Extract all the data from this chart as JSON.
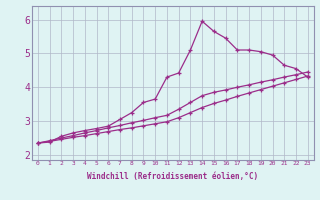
{
  "x": [
    0,
    1,
    2,
    3,
    4,
    5,
    6,
    7,
    8,
    9,
    10,
    11,
    12,
    13,
    14,
    15,
    16,
    17,
    18,
    19,
    20,
    21,
    22,
    23
  ],
  "line_curvy": [
    2.35,
    2.38,
    2.55,
    2.65,
    2.72,
    2.78,
    2.85,
    3.05,
    3.25,
    3.55,
    3.65,
    4.3,
    4.42,
    5.1,
    5.95,
    5.65,
    5.45,
    5.1,
    5.1,
    5.05,
    4.95,
    4.65,
    4.55,
    4.3
  ],
  "line_straight1": [
    2.35,
    2.42,
    2.5,
    2.57,
    2.65,
    2.72,
    2.8,
    2.87,
    2.95,
    3.02,
    3.1,
    3.17,
    3.35,
    3.55,
    3.75,
    3.85,
    3.92,
    4.0,
    4.07,
    4.15,
    4.22,
    4.3,
    4.37,
    4.45
  ],
  "line_straight2": [
    2.35,
    2.4,
    2.46,
    2.52,
    2.57,
    2.63,
    2.69,
    2.75,
    2.8,
    2.86,
    2.92,
    2.98,
    3.1,
    3.25,
    3.4,
    3.52,
    3.62,
    3.73,
    3.83,
    3.93,
    4.03,
    4.13,
    4.23,
    4.33
  ],
  "color": "#9b2d8a",
  "bg_color": "#dff3f3",
  "grid_color": "#b0b8c8",
  "xlabel": "Windchill (Refroidissement éolien,°C)",
  "ylabel_ticks": [
    2,
    3,
    4,
    5,
    6
  ],
  "xlim": [
    -0.5,
    23.5
  ],
  "ylim": [
    1.85,
    6.4
  ],
  "xtick_labels": [
    "0",
    "1",
    "2",
    "3",
    "4",
    "5",
    "6",
    "7",
    "8",
    "9",
    "10",
    "11",
    "12",
    "13",
    "14",
    "15",
    "16",
    "17",
    "18",
    "19",
    "20",
    "21",
    "22",
    "23"
  ]
}
